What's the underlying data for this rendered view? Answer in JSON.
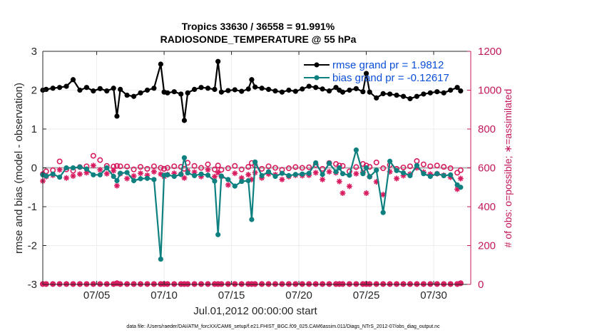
{
  "chart_data": {
    "type": "line",
    "title_line1": "Tropics 33630 / 36558 = 91.991%",
    "title_line2": "RADIOSONDE_TEMPERATURE @ 55 hPa",
    "xlabel": "Jul.01,2012 00:00:00 start",
    "ylabel": "rmse and bias (model - observation)",
    "ylabel_right": "# of obs: o=possible; ∗=assimilated",
    "footer": "data file: /Users/raeder/DAI/ATM_forcXX/CAM6_setup/f.e21.FHIST_BGC.f09_025.CAM6assim.011/Diags_NTrS_2012-07/obs_diag_output.nc",
    "xlim": [
      1.0,
      32.75
    ],
    "ylim": [
      -3,
      3
    ],
    "ylim_right": [
      0,
      1200
    ],
    "grid": true,
    "x_ticks": [
      5,
      10,
      15,
      20,
      25,
      30
    ],
    "x_tick_labels": [
      "07/05",
      "07/10",
      "07/15",
      "07/20",
      "07/25",
      "07/30"
    ],
    "y_ticks": [
      -3,
      -2,
      -1,
      0,
      1,
      2,
      3
    ],
    "y_tick_labels": [
      "-3",
      "-2",
      "-1",
      "0",
      "1",
      "2",
      "3"
    ],
    "y_right_ticks": [
      0,
      200,
      400,
      600,
      800,
      1000,
      1200
    ],
    "y_right_tick_labels": [
      "0",
      "200",
      "400",
      "600",
      "800",
      "1000",
      "1200"
    ],
    "legend": {
      "position": "top-right",
      "entries": [
        "rmse grand pr = 1.9812",
        "bias grand pr = -0.12617"
      ]
    },
    "colors": {
      "rmse": "#000000",
      "bias": "#0f8080",
      "obs": "#d81b60",
      "zero_line": "#b0b0b0"
    },
    "x": [
      1.0,
      1.25,
      1.75,
      2.25,
      2.75,
      3.25,
      3.75,
      4.25,
      4.75,
      5.25,
      5.75,
      6.25,
      6.5,
      6.75,
      7.25,
      7.75,
      8.25,
      8.75,
      9.25,
      9.75,
      10.0,
      10.25,
      10.75,
      11.25,
      11.5,
      11.75,
      12.25,
      12.75,
      13.25,
      13.75,
      14.0,
      14.25,
      14.75,
      15.25,
      15.75,
      16.25,
      16.5,
      16.75,
      17.25,
      17.75,
      18.25,
      18.75,
      19.25,
      19.75,
      20.25,
      20.75,
      21.25,
      21.75,
      22.25,
      22.75,
      23.0,
      23.25,
      23.75,
      24.25,
      24.75,
      25.0,
      25.25,
      25.75,
      26.25,
      26.75,
      27.25,
      27.75,
      28.25,
      28.75,
      29.25,
      29.75,
      30.25,
      30.75,
      31.25,
      31.75,
      32.0
    ],
    "series": [
      {
        "name": "rmse",
        "values": [
          2.0,
          2.02,
          2.05,
          2.07,
          2.1,
          2.27,
          2.0,
          2.07,
          1.98,
          2.04,
          1.98,
          2.05,
          1.33,
          2.02,
          1.87,
          1.84,
          1.93,
          2.0,
          2.05,
          2.67,
          1.95,
          1.93,
          1.96,
          1.9,
          1.22,
          1.93,
          2.02,
          2.07,
          2.05,
          2.02,
          2.74,
          1.95,
          1.99,
          2.01,
          1.97,
          2.03,
          2.27,
          2.08,
          2.05,
          2.02,
          1.98,
          1.95,
          2.0,
          1.97,
          2.03,
          2.1,
          2.07,
          2.03,
          1.98,
          2.07,
          2.0,
          1.95,
          2.0,
          2.04,
          1.96,
          2.43,
          1.95,
          1.8,
          1.91,
          1.9,
          1.87,
          1.84,
          1.78,
          1.84,
          1.9,
          1.93,
          1.96,
          1.93,
          2.0,
          2.07,
          1.98
        ]
      },
      {
        "name": "bias",
        "values": [
          -0.18,
          -0.21,
          -0.16,
          -0.24,
          0.0,
          0.0,
          0.02,
          -0.03,
          -0.18,
          -0.18,
          0.0,
          -0.22,
          -0.33,
          -0.14,
          -0.12,
          -0.33,
          -0.28,
          -0.27,
          -0.3,
          -2.35,
          -0.19,
          -0.18,
          -0.22,
          -0.17,
          0.26,
          -0.13,
          -0.2,
          -0.16,
          -0.19,
          -0.34,
          -1.72,
          -0.21,
          -0.3,
          -0.47,
          -0.35,
          -0.33,
          -1.33,
          0.15,
          -0.2,
          -0.1,
          -0.22,
          -0.14,
          -0.2,
          -0.17,
          -0.16,
          -0.14,
          0.13,
          -0.17,
          0.12,
          -0.1,
          0.0,
          -0.15,
          -0.19,
          0.46,
          -0.15,
          0.0,
          -0.23,
          -0.06,
          -1.15,
          0.17,
          -0.07,
          -0.13,
          -0.2,
          0.06,
          -0.15,
          -0.22,
          -0.15,
          -0.2,
          -0.18,
          -0.44,
          -0.5
        ]
      },
      {
        "name": "obs_possible",
        "values": [
          568,
          582,
          588,
          633,
          592,
          585,
          604,
          608,
          662,
          640,
          610,
          607,
          610,
          608,
          607,
          592,
          605,
          595,
          608,
          600,
          595,
          600,
          608,
          605,
          595,
          626,
          610,
          600,
          618,
          592,
          612,
          590,
          598,
          610,
          592,
          605,
          625,
          612,
          595,
          608,
          600,
          590,
          598,
          604,
          600,
          603,
          615,
          595,
          625,
          620,
          612,
          610,
          582,
          604,
          620,
          612,
          605,
          628,
          598,
          615,
          595,
          602,
          608,
          635,
          618,
          608,
          612,
          605,
          598,
          575,
          588
        ]
      },
      {
        "name": "obs_assimilated",
        "values": [
          532,
          555,
          562,
          590,
          548,
          558,
          568,
          575,
          612,
          590,
          570,
          585,
          508,
          570,
          545,
          558,
          572,
          562,
          580,
          568,
          555,
          565,
          572,
          568,
          548,
          585,
          578,
          555,
          590,
          555,
          575,
          555,
          512,
          572,
          548,
          565,
          540,
          575,
          548,
          568,
          565,
          540,
          555,
          562,
          560,
          562,
          575,
          540,
          580,
          575,
          530,
          470,
          505,
          570,
          578,
          470,
          555,
          528,
          462,
          580,
          545,
          560,
          568,
          600,
          578,
          568,
          570,
          562,
          552,
          490,
          545
        ]
      },
      {
        "name": "obs_at_zero_possible",
        "values": [
          2,
          2,
          2,
          2,
          2,
          2,
          2,
          2,
          2,
          2,
          2,
          2,
          6,
          2,
          2,
          2,
          2,
          2,
          2,
          2,
          2,
          2,
          2,
          2,
          2,
          2,
          2,
          2,
          2,
          2,
          2,
          2,
          2,
          2,
          2,
          2,
          2,
          2,
          2,
          2,
          2,
          2,
          2,
          2,
          2,
          2,
          2,
          2,
          2,
          2,
          2,
          2,
          2,
          2,
          2,
          2,
          2,
          2,
          2,
          2,
          2,
          2,
          2,
          2,
          2,
          2,
          2,
          2,
          2,
          2,
          6
        ]
      }
    ]
  }
}
